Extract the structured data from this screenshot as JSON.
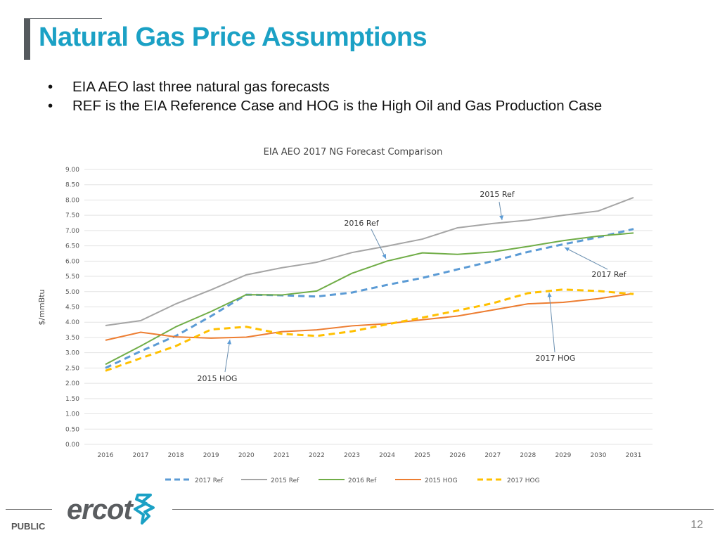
{
  "title": "Natural Gas Price Assumptions",
  "bullets": [
    "EIA AEO last three natural gas forecasts",
    "REF is the EIA Reference Case and HOG is the High Oil and Gas Production Case"
  ],
  "footer": {
    "classification": "PUBLIC",
    "logo_text": "ercot",
    "page_number": "12"
  },
  "colors": {
    "title": "#1ba1c5",
    "2017 Ref": "#5b9bd5",
    "2015 Ref": "#a5a5a5",
    "2016 Ref": "#70ad47",
    "2015 HOG": "#ed7d31",
    "2017 HOG": "#ffc000"
  },
  "chart_data": {
    "type": "line",
    "title": "EIA AEO 2017 NG Forecast Comparison",
    "xlabel": "",
    "ylabel": "$/mmBtu",
    "ylim": [
      0,
      9
    ],
    "yticks": [
      "0.00",
      "0.50",
      "1.00",
      "1.50",
      "2.00",
      "2.50",
      "3.00",
      "3.50",
      "4.00",
      "4.50",
      "5.00",
      "5.50",
      "6.00",
      "6.50",
      "7.00",
      "7.50",
      "8.00",
      "8.50",
      "9.00"
    ],
    "x": [
      "2016",
      "2017",
      "2018",
      "2019",
      "2020",
      "2021",
      "2022",
      "2023",
      "2024",
      "2025",
      "2026",
      "2027",
      "2028",
      "2029",
      "2030",
      "2031"
    ],
    "grid": true,
    "legend": "bottom",
    "series": [
      {
        "name": "2017 Ref",
        "style": "dashed",
        "values": [
          2.5,
          3.05,
          3.55,
          4.2,
          4.9,
          4.88,
          4.84,
          4.97,
          5.22,
          5.45,
          5.73,
          6.0,
          6.3,
          6.55,
          6.78,
          7.05
        ]
      },
      {
        "name": "2015 Ref",
        "style": "solid",
        "values": [
          3.89,
          4.05,
          4.6,
          5.06,
          5.55,
          5.78,
          5.96,
          6.28,
          6.49,
          6.72,
          7.09,
          7.23,
          7.34,
          7.5,
          7.64,
          8.08
        ]
      },
      {
        "name": "2016 Ref",
        "style": "solid",
        "values": [
          2.62,
          3.22,
          3.85,
          4.35,
          4.9,
          4.89,
          5.02,
          5.6,
          6.0,
          6.27,
          6.22,
          6.3,
          6.48,
          6.67,
          6.82,
          6.92
        ]
      },
      {
        "name": "2015 HOG",
        "style": "solid",
        "values": [
          3.41,
          3.67,
          3.52,
          3.48,
          3.51,
          3.69,
          3.75,
          3.88,
          3.95,
          4.08,
          4.2,
          4.4,
          4.6,
          4.65,
          4.77,
          4.94
        ]
      },
      {
        "name": "2017 HOG",
        "style": "dashed",
        "values": [
          2.41,
          2.82,
          3.22,
          3.76,
          3.85,
          3.62,
          3.55,
          3.7,
          3.93,
          4.15,
          4.38,
          4.62,
          4.95,
          5.07,
          5.02,
          4.92
        ]
      }
    ],
    "annotations": [
      {
        "text": "2015 Ref",
        "series": "2015 Ref",
        "year": "2028"
      },
      {
        "text": "2016 Ref",
        "series": "2016 Ref",
        "year": "2024"
      },
      {
        "text": "2017 Ref",
        "series": "2017 Ref",
        "year": "2029"
      },
      {
        "text": "2017 HOG",
        "series": "2017 HOG",
        "year": "2028"
      },
      {
        "text": "2015 HOG",
        "series": "2015 HOG",
        "year": "2019"
      }
    ]
  }
}
